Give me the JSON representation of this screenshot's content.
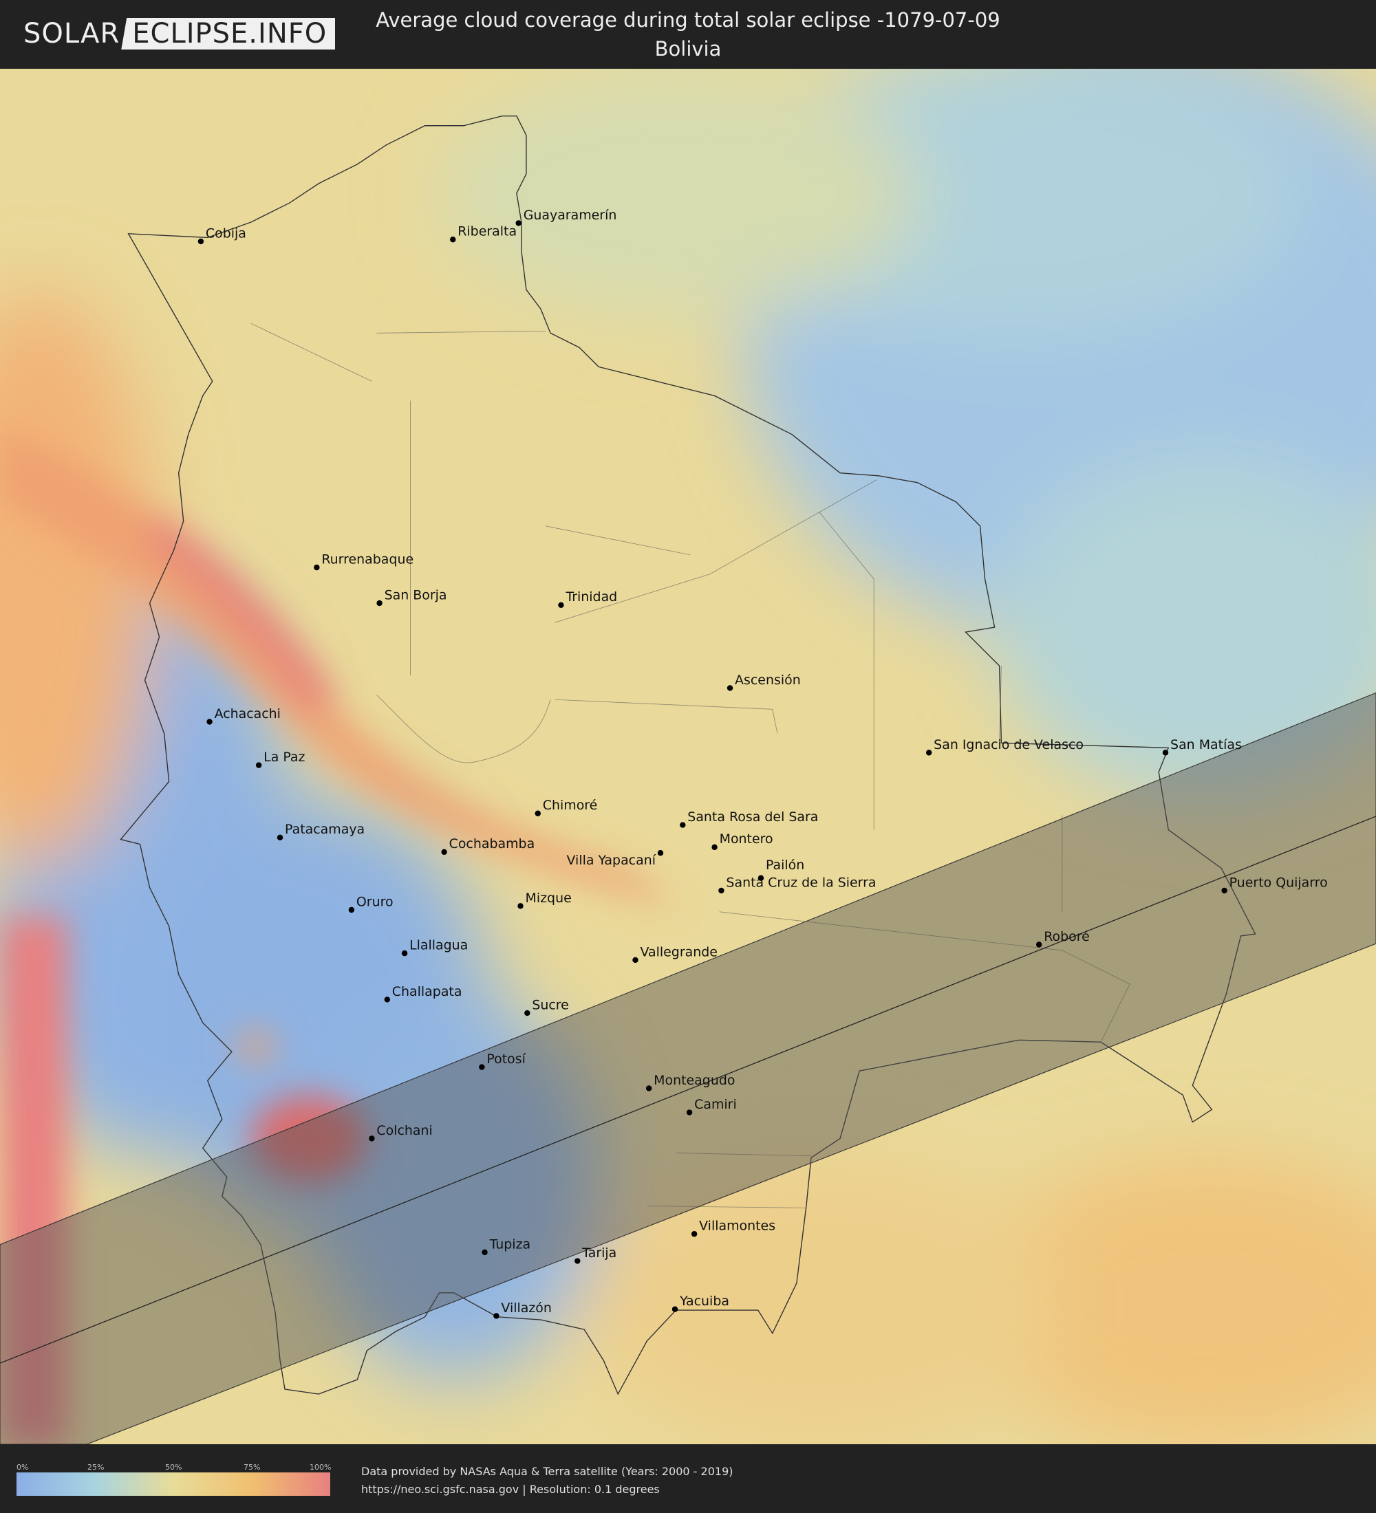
{
  "header": {
    "logo_left": "SOLAR",
    "logo_right": "ECLIPSE.INFO",
    "title_line1": "Average cloud coverage during total solar eclipse -1079-07-09",
    "title_line2": "Bolivia"
  },
  "map": {
    "country": "Bolivia",
    "cities": [
      "Cobija",
      "Riberalta",
      "Guayaramerín",
      "Rurrenabaque",
      "San Borja",
      "Trinidad",
      "Ascensión",
      "Achacachi",
      "La Paz",
      "San Ignacio de Velasco",
      "San Matías",
      "Chimoré",
      "Santa Rosa del Sara",
      "Patacamaya",
      "Cochabamba",
      "Villa Yapacaní",
      "Montero",
      "Pailón",
      "Santa Cruz de la Sierra",
      "Puerto Quijarro",
      "Oruro",
      "Mizque",
      "Roboré",
      "Llallagua",
      "Vallegrande",
      "Challapata",
      "Sucre",
      "Potosí",
      "Monteagudo",
      "Camiri",
      "Colchani",
      "Villamontes",
      "Tupiza",
      "Tarija",
      "Villazón",
      "Yacuiba"
    ],
    "eclipse_path_color": "#555555"
  },
  "legend": {
    "ticks": [
      "0%",
      "25%",
      "50%",
      "75%",
      "100%"
    ],
    "colors": [
      "#8aaee6",
      "#a8d4e0",
      "#e8dc98",
      "#f0c070",
      "#e88080"
    ]
  },
  "footer": {
    "line1": "Data provided by NASAs Aqua & Terra satellite (Years: 2000 - 2019)",
    "line2": "https://neo.sci.gsfc.nasa.gov | Resolution: 0.1 degrees"
  }
}
